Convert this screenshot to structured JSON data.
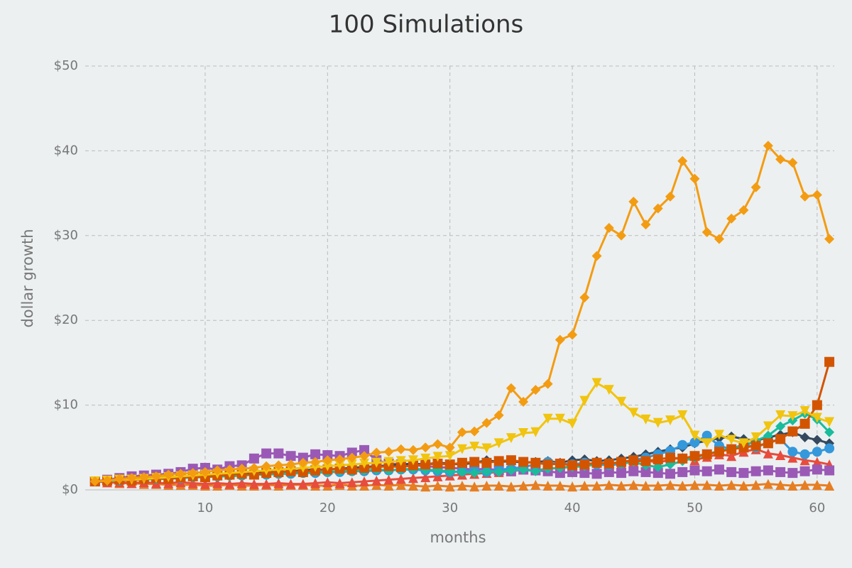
{
  "chart_data": {
    "type": "line",
    "title": "100 Simulations",
    "x_label": "months",
    "y_label": "dollar growth",
    "x": [
      1,
      2,
      3,
      4,
      5,
      6,
      7,
      8,
      9,
      10,
      11,
      12,
      13,
      14,
      15,
      16,
      17,
      18,
      19,
      20,
      21,
      22,
      23,
      24,
      25,
      26,
      27,
      28,
      29,
      30,
      31,
      32,
      33,
      34,
      35,
      36,
      37,
      38,
      39,
      40,
      41,
      42,
      43,
      44,
      45,
      46,
      47,
      48,
      49,
      50,
      51,
      52,
      53,
      54,
      55,
      56,
      57,
      58,
      59,
      60,
      61
    ],
    "xlim": [
      0.2,
      61.4
    ],
    "xticks": [
      10,
      20,
      30,
      40,
      50,
      60
    ],
    "ylim": [
      0,
      50
    ],
    "yticks": [
      {
        "value": 0,
        "label": "$0"
      },
      {
        "value": 10,
        "label": "$10"
      },
      {
        "value": 20,
        "label": "$20"
      },
      {
        "value": 30,
        "label": "$30"
      },
      {
        "value": 40,
        "label": "$40"
      },
      {
        "value": 50,
        "label": "$50"
      }
    ],
    "grid": true,
    "series": [
      {
        "color": "#e67e22",
        "marker": "triangle",
        "values": [
          1.0,
          0.9,
          0.8,
          0.8,
          0.7,
          0.7,
          0.6,
          0.6,
          0.6,
          0.5,
          0.5,
          0.6,
          0.5,
          0.5,
          0.6,
          0.5,
          0.6,
          0.6,
          0.5,
          0.5,
          0.6,
          0.5,
          0.5,
          0.6,
          0.5,
          0.6,
          0.5,
          0.4,
          0.5,
          0.4,
          0.5,
          0.4,
          0.5,
          0.5,
          0.4,
          0.5,
          0.6,
          0.5,
          0.5,
          0.4,
          0.5,
          0.5,
          0.6,
          0.5,
          0.6,
          0.5,
          0.5,
          0.6,
          0.5,
          0.6,
          0.6,
          0.5,
          0.6,
          0.5,
          0.6,
          0.7,
          0.6,
          0.5,
          0.6,
          0.6,
          0.5
        ]
      },
      {
        "color": "#e74c3c",
        "marker": "triangle",
        "values": [
          1.0,
          0.9,
          0.9,
          0.8,
          0.9,
          0.8,
          0.8,
          0.9,
          0.8,
          0.7,
          0.8,
          0.7,
          0.8,
          0.7,
          0.7,
          0.8,
          0.7,
          0.7,
          0.8,
          0.9,
          0.8,
          0.9,
          1.0,
          1.1,
          1.2,
          1.3,
          1.4,
          1.5,
          1.6,
          1.7,
          1.8,
          1.9,
          2.0,
          2.1,
          2.2,
          2.4,
          2.3,
          2.5,
          2.6,
          2.8,
          3.0,
          3.2,
          2.9,
          3.1,
          3.3,
          3.5,
          3.2,
          3.6,
          3.8,
          3.5,
          3.9,
          4.2,
          4.0,
          4.5,
          4.8,
          4.3,
          4.1,
          3.8,
          3.5,
          3.3,
          3.0
        ]
      },
      {
        "color": "#9b59b6",
        "marker": "square",
        "values": [
          1.0,
          1.2,
          1.4,
          1.6,
          1.7,
          1.8,
          1.9,
          2.1,
          2.5,
          2.6,
          2.4,
          2.8,
          2.9,
          3.7,
          4.3,
          4.3,
          4.0,
          3.8,
          4.2,
          4.1,
          4.0,
          4.4,
          4.7,
          3.5,
          3.1,
          3.0,
          2.9,
          2.8,
          2.7,
          2.6,
          2.5,
          2.4,
          2.5,
          2.3,
          2.2,
          2.4,
          2.3,
          2.2,
          2.0,
          2.1,
          2.0,
          1.9,
          2.1,
          2.0,
          2.2,
          2.1,
          2.0,
          1.9,
          2.1,
          2.3,
          2.2,
          2.4,
          2.1,
          2.0,
          2.2,
          2.3,
          2.1,
          2.0,
          2.2,
          2.4,
          2.3
        ]
      },
      {
        "color": "#34495e",
        "marker": "diamond",
        "values": [
          1.0,
          1.1,
          1.2,
          1.3,
          1.3,
          1.4,
          1.5,
          1.6,
          1.6,
          1.7,
          1.8,
          1.9,
          1.9,
          2.0,
          2.1,
          2.1,
          2.2,
          2.3,
          2.4,
          2.4,
          2.5,
          2.6,
          2.7,
          2.8,
          2.9,
          3.0,
          3.1,
          3.0,
          3.2,
          3.1,
          3.0,
          3.2,
          3.5,
          3.3,
          3.4,
          3.2,
          3.3,
          3.4,
          3.2,
          3.5,
          3.6,
          3.4,
          3.5,
          3.7,
          3.9,
          4.2,
          4.5,
          4.8,
          5.0,
          5.5,
          5.8,
          6.1,
          6.3,
          6.0,
          5.8,
          6.2,
          6.5,
          6.8,
          6.2,
          5.9,
          5.5
        ]
      },
      {
        "color": "#3498db",
        "marker": "circle",
        "values": [
          1.0,
          1.1,
          1.1,
          1.2,
          1.3,
          1.3,
          1.4,
          1.4,
          1.5,
          1.6,
          1.6,
          1.7,
          1.7,
          1.8,
          1.8,
          1.9,
          1.9,
          2.0,
          2.0,
          2.1,
          2.1,
          2.2,
          2.2,
          2.3,
          2.3,
          2.4,
          2.4,
          2.3,
          2.2,
          2.1,
          2.2,
          2.3,
          2.1,
          2.4,
          2.5,
          2.7,
          3.0,
          3.3,
          3.1,
          3.0,
          3.2,
          3.0,
          2.9,
          3.1,
          3.5,
          3.8,
          4.2,
          4.6,
          5.3,
          5.6,
          6.4,
          5.2,
          4.8,
          5.4,
          5.0,
          5.6,
          6.0,
          4.5,
          4.2,
          4.5,
          4.9
        ]
      },
      {
        "color": "#1abc9c",
        "marker": "diamond",
        "values": [
          1.0,
          1.0,
          1.1,
          1.2,
          1.2,
          1.3,
          1.3,
          1.4,
          1.5,
          1.5,
          1.6,
          1.6,
          1.7,
          1.8,
          1.8,
          1.9,
          2.0,
          2.0,
          2.1,
          2.1,
          2.2,
          2.2,
          2.3,
          2.4,
          2.3,
          2.4,
          2.5,
          2.4,
          2.3,
          2.2,
          2.1,
          2.0,
          2.2,
          2.1,
          2.3,
          2.4,
          2.2,
          2.5,
          2.6,
          2.7,
          2.8,
          3.0,
          3.2,
          3.1,
          3.3,
          2.9,
          2.7,
          3.0,
          3.4,
          3.8,
          4.2,
          4.6,
          4.9,
          5.2,
          5.8,
          6.4,
          7.5,
          8.2,
          9.0,
          8.3,
          6.8
        ]
      },
      {
        "color": "#d35400",
        "marker": "square",
        "values": [
          1.0,
          1.1,
          1.2,
          1.1,
          1.3,
          1.4,
          1.3,
          1.5,
          1.6,
          1.5,
          1.7,
          1.8,
          1.9,
          1.8,
          2.0,
          2.1,
          2.2,
          2.1,
          2.3,
          2.4,
          2.5,
          2.4,
          2.6,
          2.7,
          2.8,
          2.7,
          2.9,
          3.0,
          3.1,
          3.0,
          3.2,
          3.3,
          3.2,
          3.4,
          3.5,
          3.3,
          3.2,
          3.0,
          3.1,
          2.9,
          3.0,
          3.2,
          3.1,
          3.3,
          3.5,
          3.4,
          3.6,
          3.8,
          3.7,
          4.0,
          4.2,
          4.5,
          4.8,
          5.0,
          5.2,
          5.5,
          6.0,
          6.9,
          7.8,
          10.0,
          15.1
        ]
      },
      {
        "color": "#f1c40f",
        "marker": "triangle-down",
        "values": [
          1.0,
          1.1,
          1.2,
          1.2,
          1.3,
          1.4,
          1.5,
          1.6,
          1.7,
          1.8,
          1.9,
          2.0,
          2.1,
          2.2,
          2.3,
          2.4,
          2.5,
          2.6,
          2.7,
          2.8,
          2.9,
          3.0,
          3.1,
          3.2,
          3.3,
          3.4,
          3.5,
          3.7,
          3.9,
          4.0,
          4.8,
          5.1,
          4.9,
          5.5,
          6.1,
          6.7,
          6.8,
          8.4,
          8.4,
          7.8,
          10.5,
          12.6,
          11.8,
          10.4,
          9.1,
          8.3,
          7.9,
          8.2,
          8.8,
          6.4,
          5.5,
          6.5,
          5.9,
          5.5,
          6.2,
          7.5,
          8.8,
          8.7,
          9.3,
          8.5,
          8.0
        ]
      },
      {
        "color": "#f39c12",
        "marker": "diamond",
        "values": [
          1.0,
          1.1,
          1.3,
          1.4,
          1.5,
          1.6,
          1.8,
          1.9,
          2.0,
          2.1,
          2.3,
          2.4,
          2.5,
          2.6,
          2.8,
          2.9,
          3.0,
          3.2,
          3.3,
          3.5,
          3.6,
          3.8,
          4.0,
          4.4,
          4.5,
          4.8,
          4.7,
          5.0,
          5.4,
          5.0,
          6.8,
          6.9,
          7.9,
          8.8,
          12.0,
          10.4,
          11.8,
          12.5,
          17.7,
          18.3,
          22.7,
          27.6,
          30.9,
          30.0,
          34.0,
          31.3,
          33.2,
          34.6,
          38.8,
          36.7,
          30.4,
          29.6,
          32.0,
          33.0,
          35.7,
          40.6,
          39.0,
          38.6,
          34.6,
          34.8,
          29.6
        ]
      }
    ]
  }
}
